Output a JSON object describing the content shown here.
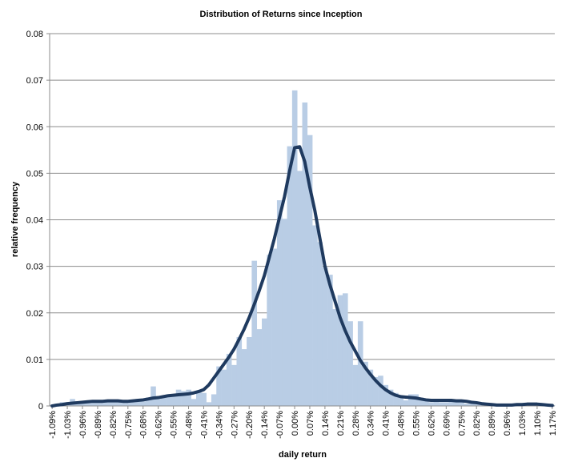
{
  "chart_data": {
    "type": "bar",
    "title": "Distribution of Returns since Inception",
    "x_label": "daily return",
    "y_label": "relative frequency",
    "categories": [
      "-1.09%",
      null,
      null,
      "-1.03%",
      null,
      null,
      "-0.96%",
      null,
      null,
      "-0.89%",
      null,
      null,
      "-0.82%",
      null,
      null,
      "-0.75%",
      null,
      null,
      "-0.68%",
      null,
      null,
      "-0.62%",
      null,
      null,
      "-0.55%",
      null,
      null,
      "-0.48%",
      null,
      null,
      "-0.41%",
      null,
      null,
      "-0.34%",
      null,
      null,
      "-0.27%",
      null,
      null,
      "-0.20%",
      null,
      null,
      "-0.14%",
      null,
      null,
      "-0.07%",
      null,
      null,
      "0.00%",
      null,
      null,
      "0.07%",
      null,
      null,
      "0.14%",
      null,
      null,
      "0.21%",
      null,
      null,
      "0.28%",
      null,
      null,
      "0.34%",
      null,
      null,
      "0.41%",
      null,
      null,
      "0.48%",
      null,
      null,
      "0.55%",
      null,
      null,
      "0.62%",
      null,
      null,
      "0.69%",
      null,
      null,
      "0.75%",
      null,
      null,
      "0.82%",
      null,
      null,
      "0.89%",
      null,
      null,
      "0.96%",
      null,
      null,
      "1.03%",
      null,
      null,
      "1.10%",
      null,
      null,
      "1.17%"
    ],
    "series": [
      {
        "type": "bar",
        "color": "#b9cde5",
        "values": [
          0.0003,
          0.0005,
          0.0008,
          0.0008,
          0.0015,
          0.001,
          0.0008,
          0.0012,
          0.0008,
          0.0012,
          0.0012,
          0.001,
          0.0012,
          0.0008,
          0.001,
          0.0012,
          0.0008,
          0.0015,
          0.001,
          0.0018,
          0.0042,
          0.0015,
          0.002,
          0.0025,
          0.0022,
          0.0035,
          0.0032,
          0.0035,
          0.0015,
          0.0032,
          0.0028,
          0.0008,
          0.0025,
          0.0085,
          0.0078,
          0.0112,
          0.0088,
          0.0148,
          0.0122,
          0.0148,
          0.0312,
          0.0165,
          0.0188,
          0.0325,
          0.0338,
          0.0442,
          0.0402,
          0.0558,
          0.0678,
          0.0505,
          0.0652,
          0.0582,
          0.0388,
          0.0352,
          0.0298,
          0.0282,
          0.0208,
          0.0238,
          0.0242,
          0.0182,
          0.0088,
          0.0182,
          0.0095,
          0.0078,
          0.0062,
          0.0065,
          0.0045,
          0.0035,
          0.0028,
          0.0018,
          0.0012,
          0.0025,
          0.0025,
          0.0018,
          0.0012,
          0.0008,
          0.001,
          0.0008,
          0.0008,
          0.001,
          0.0012,
          0.0008,
          0.0005,
          0.0005,
          0.0005,
          0.0003,
          0.0003,
          0.0005,
          0.0003,
          0.0002,
          0.0002,
          0.0003,
          0.0002,
          0.0005,
          0.0005,
          0.0003,
          0.0003,
          0.0002,
          0.0002,
          0.0002
        ]
      },
      {
        "type": "line",
        "color": "#1f3a5f",
        "values": [
          0,
          0.0002,
          0.0003,
          0.0005,
          0.0006,
          0.0007,
          0.0008,
          0.0009,
          0.001,
          0.001,
          0.001,
          0.0011,
          0.0011,
          0.0011,
          0.001,
          0.001,
          0.0011,
          0.0012,
          0.0013,
          0.0015,
          0.0017,
          0.0018,
          0.002,
          0.0022,
          0.0023,
          0.0024,
          0.0025,
          0.0026,
          0.0028,
          0.0031,
          0.0035,
          0.0045,
          0.006,
          0.0075,
          0.009,
          0.0105,
          0.0122,
          0.0143,
          0.0165,
          0.019,
          0.0218,
          0.0248,
          0.028,
          0.032,
          0.036,
          0.0405,
          0.045,
          0.0505,
          0.0555,
          0.0557,
          0.0525,
          0.047,
          0.042,
          0.036,
          0.03,
          0.026,
          0.0225,
          0.019,
          0.0162,
          0.0138,
          0.0118,
          0.0098,
          0.0082,
          0.0068,
          0.0055,
          0.0044,
          0.0035,
          0.0028,
          0.0023,
          0.002,
          0.0019,
          0.0018,
          0.0017,
          0.0015,
          0.0013,
          0.0012,
          0.0012,
          0.0012,
          0.0012,
          0.0012,
          0.0011,
          0.0011,
          0.001,
          0.0008,
          0.0007,
          0.0005,
          0.0004,
          0.0003,
          0.0002,
          0.0002,
          0.0002,
          0.0002,
          0.0003,
          0.0003,
          0.0004,
          0.0004,
          0.0004,
          0.0003,
          0.0002,
          0.0001
        ]
      }
    ],
    "ylim": [
      0,
      0.08
    ],
    "yticks": [
      0,
      0.01,
      0.02,
      0.03,
      0.04,
      0.05,
      0.06,
      0.07,
      0.08
    ],
    "grid": true
  }
}
